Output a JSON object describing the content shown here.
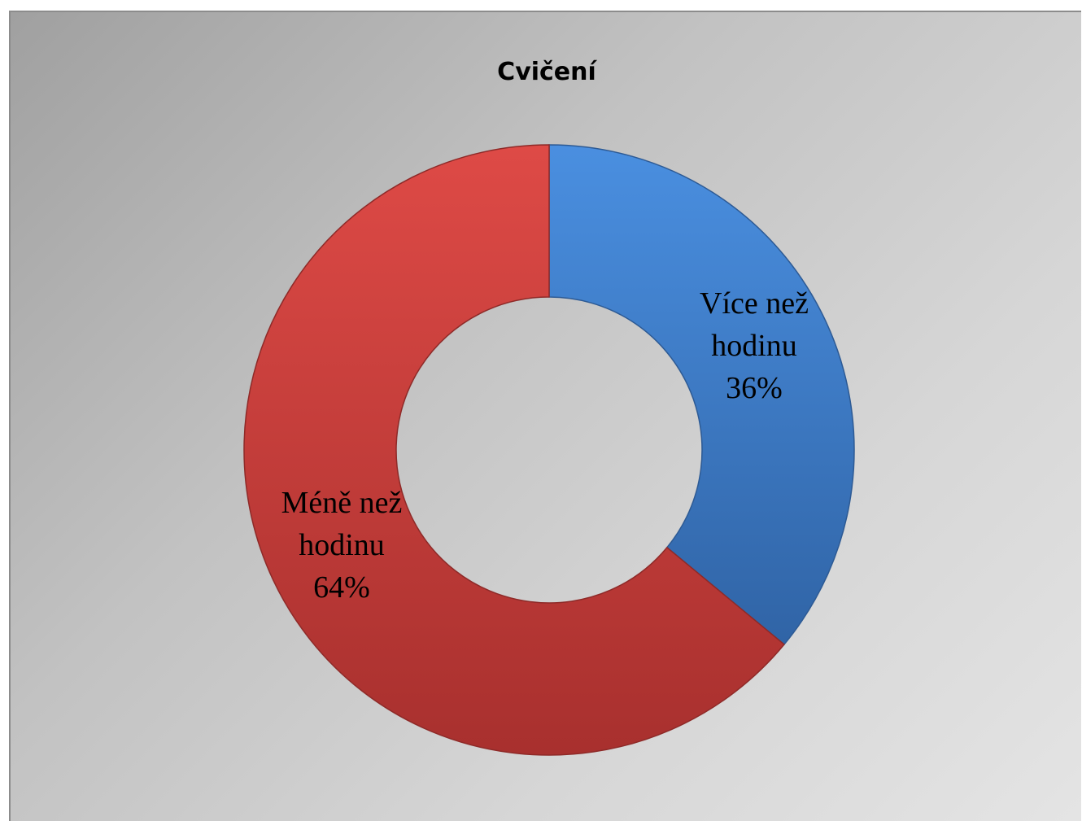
{
  "chart_data": {
    "type": "pie",
    "variant": "donut",
    "title": "Cvičení",
    "categories": [
      "Více než hodinu",
      "Méně než hodinu"
    ],
    "values": [
      36,
      64
    ],
    "unit": "%",
    "colors": [
      "#3f7fcc",
      "#c93d3a"
    ],
    "labels": [
      {
        "lines": [
          "Více než",
          "hodinu",
          "36%"
        ]
      },
      {
        "lines": [
          "Méně než",
          "hodinu",
          "64%"
        ]
      }
    ],
    "legend": "none",
    "data_labels": "inside"
  }
}
